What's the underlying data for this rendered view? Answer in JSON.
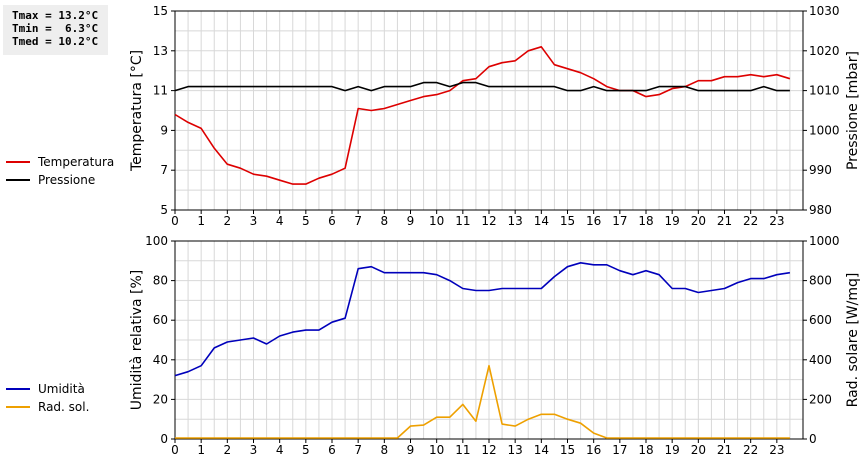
{
  "stats": {
    "tmax": "Tmax = 13.2°C",
    "tmin": "Tmin =  6.3°C",
    "tmed": "Tmed = 10.2°C"
  },
  "chart_data": [
    {
      "type": "line",
      "x_ticks": [
        "0",
        "1",
        "2",
        "3",
        "4",
        "5",
        "6",
        "7",
        "8",
        "9",
        "10",
        "11",
        "12",
        "13",
        "14",
        "15",
        "16",
        "17",
        "18",
        "19",
        "20",
        "21",
        "22",
        "23"
      ],
      "xlim": [
        0,
        24
      ],
      "ylabel_left": "Temperatura [°C]",
      "ylabel_right": "Pressione [mbar]",
      "ylim_left": [
        5,
        15
      ],
      "ylim_right": [
        980,
        1030
      ],
      "yticks_left": [
        "5",
        "7",
        "9",
        "11",
        "13",
        "15"
      ],
      "yticks_right": [
        "980",
        "990",
        "1000",
        "1010",
        "1020",
        "1030"
      ],
      "grid": true,
      "legend_placement": "left",
      "series": [
        {
          "name": "Temperatura",
          "axis": "left",
          "color": "#dd0000",
          "x": [
            0,
            0.5,
            1,
            1.5,
            2,
            2.5,
            3,
            3.5,
            4,
            4.5,
            5,
            5.5,
            6,
            6.5,
            7,
            7.5,
            8,
            8.5,
            9,
            9.5,
            10,
            10.5,
            11,
            11.5,
            12,
            12.5,
            13,
            13.5,
            14,
            14.5,
            15,
            15.5,
            16,
            16.5,
            17,
            17.5,
            18,
            18.5,
            19,
            19.5,
            20,
            20.5,
            21,
            21.5,
            22,
            22.5,
            23,
            23.5
          ],
          "y": [
            9.8,
            9.4,
            9.1,
            8.1,
            7.3,
            7.1,
            6.8,
            6.7,
            6.5,
            6.3,
            6.3,
            6.6,
            6.8,
            7.1,
            10.1,
            10.0,
            10.1,
            10.3,
            10.5,
            10.7,
            10.8,
            11.0,
            11.5,
            11.6,
            12.2,
            12.4,
            12.5,
            13.0,
            13.2,
            12.3,
            12.1,
            11.9,
            11.6,
            11.2,
            11.0,
            11.0,
            10.7,
            10.8,
            11.1,
            11.2,
            11.5,
            11.5,
            11.7,
            11.7,
            11.8,
            11.7,
            11.8,
            11.6
          ]
        },
        {
          "name": "Pressione",
          "axis": "right",
          "color": "#000000",
          "x": [
            0,
            0.5,
            1,
            1.5,
            2,
            2.5,
            3,
            3.5,
            4,
            4.5,
            5,
            5.5,
            6,
            6.5,
            7,
            7.5,
            8,
            8.5,
            9,
            9.5,
            10,
            10.5,
            11,
            11.5,
            12,
            12.5,
            13,
            13.5,
            14,
            14.5,
            15,
            15.5,
            16,
            16.5,
            17,
            17.5,
            18,
            18.5,
            19,
            19.5,
            20,
            20.5,
            21,
            21.5,
            22,
            22.5,
            23,
            23.5
          ],
          "y": [
            1010,
            1011,
            1011,
            1011,
            1011,
            1011,
            1011,
            1011,
            1011,
            1011,
            1011,
            1011,
            1011,
            1010,
            1011,
            1010,
            1011,
            1011,
            1011,
            1012,
            1012,
            1011,
            1012,
            1012,
            1011,
            1011,
            1011,
            1011,
            1011,
            1011,
            1010,
            1010,
            1011,
            1010,
            1010,
            1010,
            1010,
            1011,
            1011,
            1011,
            1010,
            1010,
            1010,
            1010,
            1010,
            1011,
            1010,
            1010
          ]
        }
      ]
    },
    {
      "type": "line",
      "x_ticks": [
        "0",
        "1",
        "2",
        "3",
        "4",
        "5",
        "6",
        "7",
        "8",
        "9",
        "10",
        "11",
        "12",
        "13",
        "14",
        "15",
        "16",
        "17",
        "18",
        "19",
        "20",
        "21",
        "22",
        "23"
      ],
      "xlim": [
        0,
        24
      ],
      "ylabel_left": "Umidità relativa [%]",
      "ylabel_right": "Rad. solare [W/mq]",
      "ylim_left": [
        0,
        100
      ],
      "ylim_right": [
        0,
        1000
      ],
      "yticks_left": [
        "0",
        "20",
        "40",
        "60",
        "80",
        "100"
      ],
      "yticks_right": [
        "0",
        "200",
        "400",
        "600",
        "800",
        "1000"
      ],
      "grid": true,
      "legend_placement": "left",
      "series": [
        {
          "name": "Umidità",
          "axis": "left",
          "color": "#0000bb",
          "x": [
            0,
            0.5,
            1,
            1.5,
            2,
            2.5,
            3,
            3.5,
            4,
            4.5,
            5,
            5.5,
            6,
            6.5,
            7,
            7.5,
            8,
            8.5,
            9,
            9.5,
            10,
            10.5,
            11,
            11.5,
            12,
            12.5,
            13,
            13.5,
            14,
            14.5,
            15,
            15.5,
            16,
            16.5,
            17,
            17.5,
            18,
            18.5,
            19,
            19.5,
            20,
            20.5,
            21,
            21.5,
            22,
            22.5,
            23,
            23.5
          ],
          "y": [
            32,
            34,
            37,
            46,
            49,
            50,
            51,
            48,
            52,
            54,
            55,
            55,
            59,
            61,
            86,
            87,
            84,
            84,
            84,
            84,
            83,
            80,
            76,
            75,
            75,
            76,
            76,
            76,
            76,
            82,
            87,
            89,
            88,
            88,
            85,
            83,
            85,
            83,
            76,
            76,
            74,
            75,
            76,
            79,
            81,
            81,
            83,
            84
          ]
        },
        {
          "name": "Rad. sol.",
          "axis": "right",
          "color": "#eea000",
          "x": [
            0,
            0.5,
            1,
            1.5,
            2,
            2.5,
            3,
            3.5,
            4,
            4.5,
            5,
            5.5,
            6,
            6.5,
            7,
            7.5,
            8,
            8.5,
            9,
            9.5,
            10,
            10.5,
            11,
            11.5,
            12,
            12.5,
            13,
            13.5,
            14,
            14.5,
            15,
            15.5,
            16,
            16.5,
            17,
            17.5,
            18,
            18.5,
            19,
            19.5,
            20,
            20.5,
            21,
            21.5,
            22,
            22.5,
            23,
            23.5
          ],
          "y": [
            5,
            5,
            5,
            5,
            5,
            5,
            5,
            5,
            5,
            5,
            5,
            5,
            5,
            5,
            5,
            5,
            5,
            5,
            65,
            70,
            110,
            110,
            175,
            90,
            370,
            75,
            65,
            100,
            125,
            125,
            100,
            80,
            30,
            5,
            5,
            5,
            5,
            5,
            5,
            5,
            5,
            5,
            5,
            5,
            5,
            5,
            5,
            5
          ]
        }
      ]
    }
  ]
}
